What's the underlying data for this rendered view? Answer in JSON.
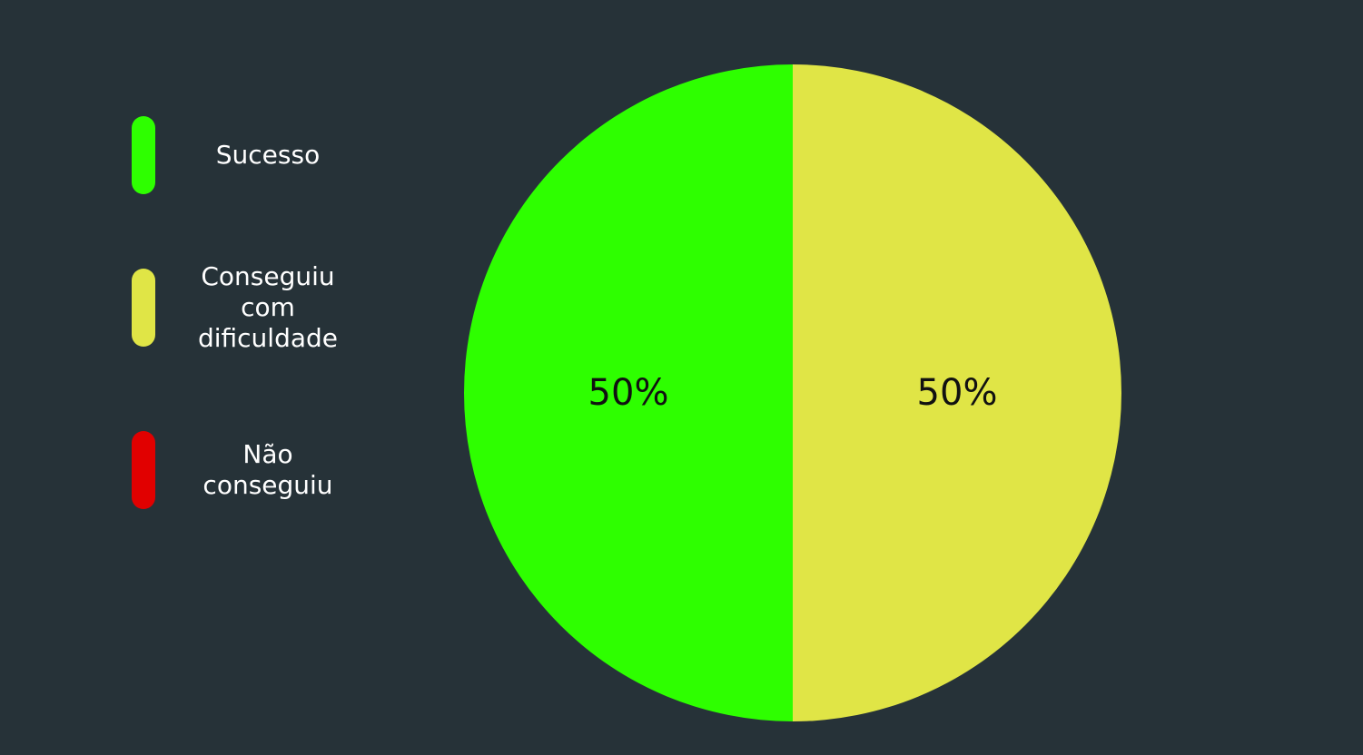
{
  "chart_data": {
    "type": "pie",
    "categories": [
      "Sucesso",
      "Conseguiu com dificuldade",
      "Não conseguiu"
    ],
    "values": [
      50,
      50,
      0
    ],
    "data_labels": [
      "50%",
      "50%",
      ""
    ],
    "colors": [
      "#2eff00",
      "#e0e546",
      "#e10000"
    ],
    "legend_position": "left",
    "background": "#263238",
    "start_angle_deg": 90
  },
  "legend": {
    "items": [
      {
        "label": "Sucesso",
        "color": "#2eff00"
      },
      {
        "label": "Conseguiu\ncom\ndificuldade",
        "color": "#e0e546"
      },
      {
        "label": "Não\nconseguiu",
        "color": "#e10000"
      }
    ]
  }
}
